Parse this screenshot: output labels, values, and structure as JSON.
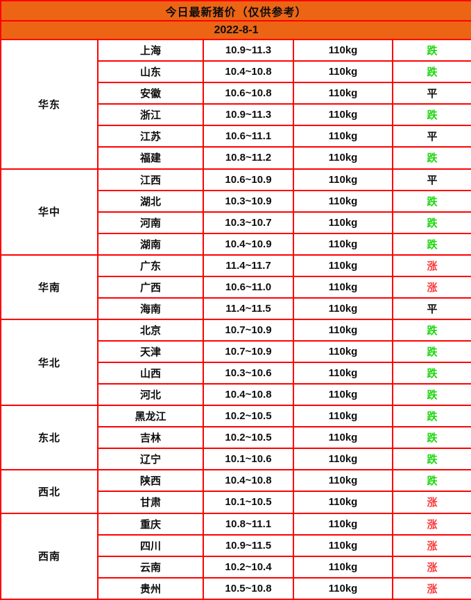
{
  "colors": {
    "header_bg": "#ec6515",
    "border": "#ff0000",
    "down": "#1dd70e",
    "up": "#fb3c3c",
    "flat": "#0d0d0d"
  },
  "chart_data": {
    "type": "table",
    "title": "今日最新猪价（仅供参考）",
    "date": "2022-8-1",
    "regions": [
      {
        "name": "华东",
        "rows": [
          {
            "province": "上海",
            "price": "10.9~11.3",
            "weight": "110kg",
            "trend": "跌",
            "trend_type": "down"
          },
          {
            "province": "山东",
            "price": "10.4~10.8",
            "weight": "110kg",
            "trend": "跌",
            "trend_type": "down"
          },
          {
            "province": "安徽",
            "price": "10.6~10.8",
            "weight": "110kg",
            "trend": "平",
            "trend_type": "flat"
          },
          {
            "province": "浙江",
            "price": "10.9~11.3",
            "weight": "110kg",
            "trend": "跌",
            "trend_type": "down"
          },
          {
            "province": "江苏",
            "price": "10.6~11.1",
            "weight": "110kg",
            "trend": "平",
            "trend_type": "flat"
          },
          {
            "province": "福建",
            "price": "10.8~11.2",
            "weight": "110kg",
            "trend": "跌",
            "trend_type": "down"
          }
        ]
      },
      {
        "name": "华中",
        "rows": [
          {
            "province": "江西",
            "price": "10.6~10.9",
            "weight": "110kg",
            "trend": "平",
            "trend_type": "flat"
          },
          {
            "province": "湖北",
            "price": "10.3~10.9",
            "weight": "110kg",
            "trend": "跌",
            "trend_type": "down"
          },
          {
            "province": "河南",
            "price": "10.3~10.7",
            "weight": "110kg",
            "trend": "跌",
            "trend_type": "down"
          },
          {
            "province": "湖南",
            "price": "10.4~10.9",
            "weight": "110kg",
            "trend": "跌",
            "trend_type": "down"
          }
        ]
      },
      {
        "name": "华南",
        "rows": [
          {
            "province": "广东",
            "price": "11.4~11.7",
            "weight": "110kg",
            "trend": "涨",
            "trend_type": "up"
          },
          {
            "province": "广西",
            "price": "10.6~11.0",
            "weight": "110kg",
            "trend": "涨",
            "trend_type": "up"
          },
          {
            "province": "海南",
            "price": "11.4~11.5",
            "weight": "110kg",
            "trend": "平",
            "trend_type": "flat"
          }
        ]
      },
      {
        "name": "华北",
        "rows": [
          {
            "province": "北京",
            "price": "10.7~10.9",
            "weight": "110kg",
            "trend": "跌",
            "trend_type": "down"
          },
          {
            "province": "天津",
            "price": "10.7~10.9",
            "weight": "110kg",
            "trend": "跌",
            "trend_type": "down"
          },
          {
            "province": "山西",
            "price": "10.3~10.6",
            "weight": "110kg",
            "trend": "跌",
            "trend_type": "down"
          },
          {
            "province": "河北",
            "price": "10.4~10.8",
            "weight": "110kg",
            "trend": "跌",
            "trend_type": "down"
          }
        ]
      },
      {
        "name": "东北",
        "rows": [
          {
            "province": "黑龙江",
            "price": "10.2~10.5",
            "weight": "110kg",
            "trend": "跌",
            "trend_type": "down"
          },
          {
            "province": "吉林",
            "price": "10.2~10.5",
            "weight": "110kg",
            "trend": "跌",
            "trend_type": "down"
          },
          {
            "province": "辽宁",
            "price": "10.1~10.6",
            "weight": "110kg",
            "trend": "跌",
            "trend_type": "down"
          }
        ]
      },
      {
        "name": "西北",
        "rows": [
          {
            "province": "陕西",
            "price": "10.4~10.8",
            "weight": "110kg",
            "trend": "跌",
            "trend_type": "down"
          },
          {
            "province": "甘肃",
            "price": "10.1~10.5",
            "weight": "110kg",
            "trend": "涨",
            "trend_type": "up"
          }
        ]
      },
      {
        "name": "西南",
        "rows": [
          {
            "province": "重庆",
            "price": "10.8~11.1",
            "weight": "110kg",
            "trend": "涨",
            "trend_type": "up"
          },
          {
            "province": "四川",
            "price": "10.9~11.5",
            "weight": "110kg",
            "trend": "涨",
            "trend_type": "up"
          },
          {
            "province": "云南",
            "price": "10.2~10.4",
            "weight": "110kg",
            "trend": "涨",
            "trend_type": "up"
          },
          {
            "province": "贵州",
            "price": "10.5~10.8",
            "weight": "110kg",
            "trend": "涨",
            "trend_type": "up"
          }
        ]
      }
    ]
  }
}
